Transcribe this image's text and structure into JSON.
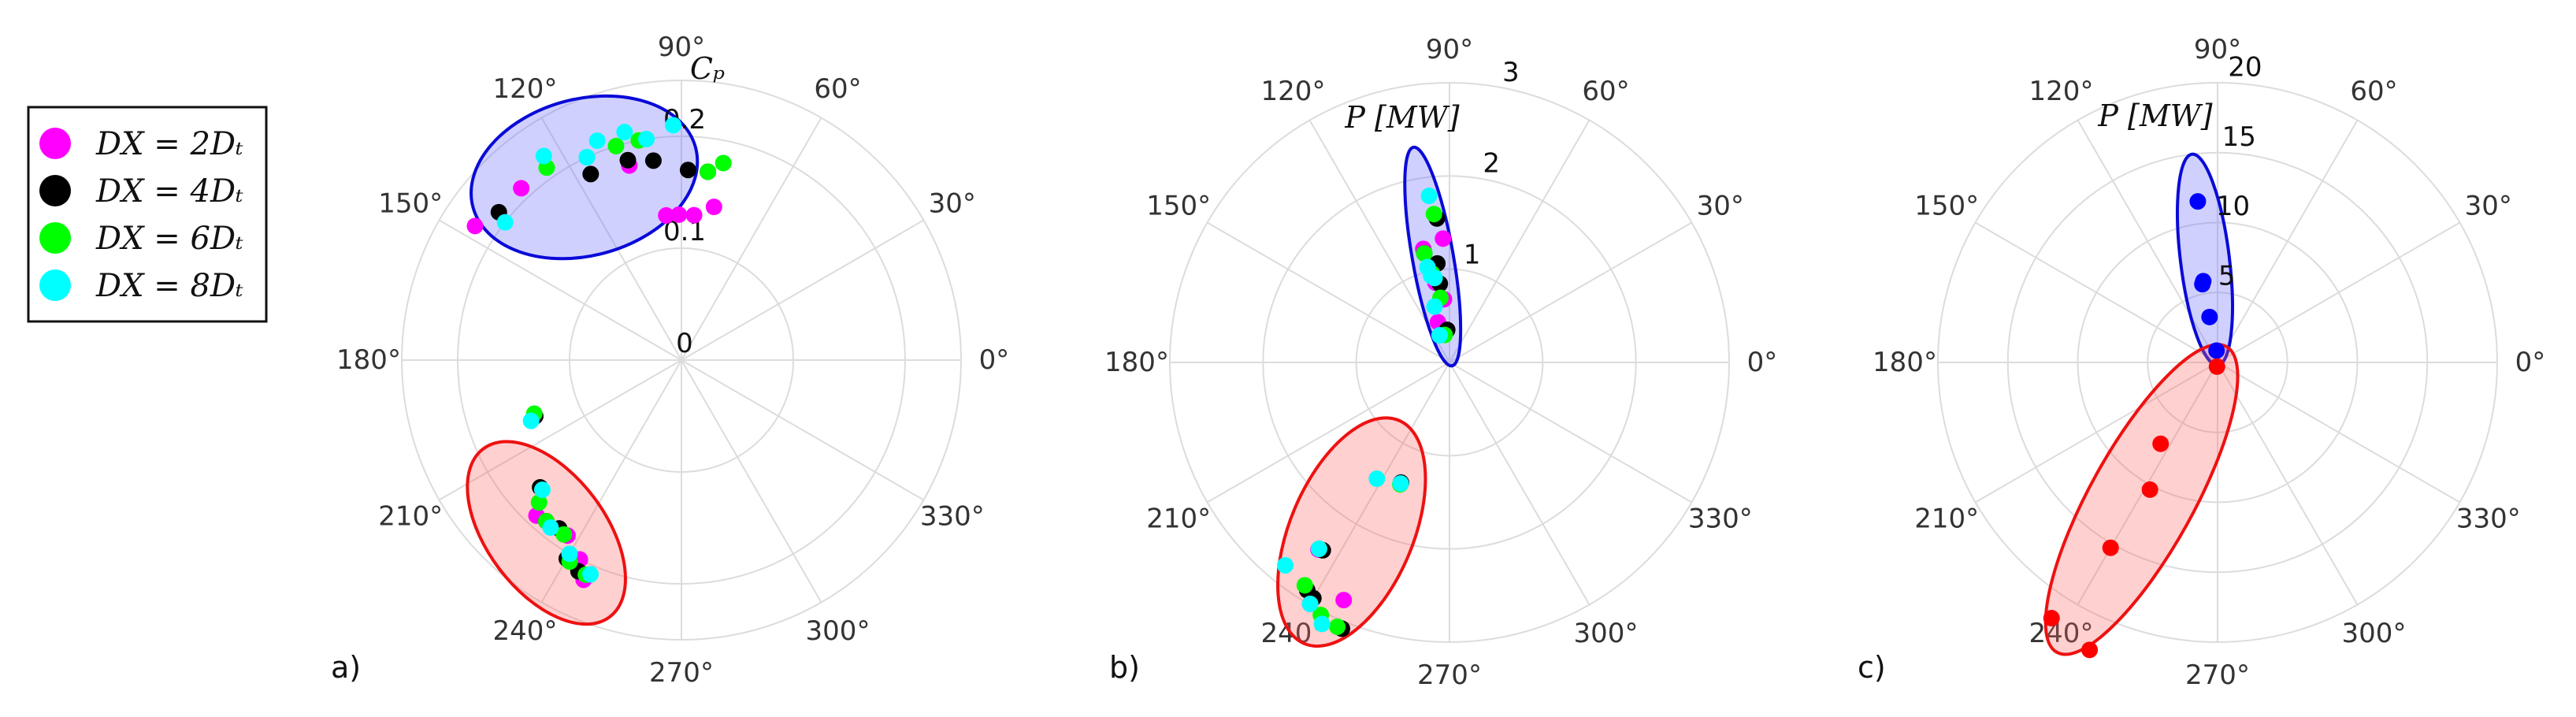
{
  "legend": [
    {
      "label": "DX = 2Dₜ",
      "color": "#ff00ff"
    },
    {
      "label": "DX = 4Dₜ",
      "color": "#000000"
    },
    {
      "label": "DX = 6Dₜ",
      "color": "#00ff00"
    },
    {
      "label": "DX = 8Dₜ",
      "color": "#00ffff"
    }
  ],
  "angle_ticks": [
    "0°",
    "30°",
    "60°",
    "90°",
    "120°",
    "150°",
    "180°",
    "210°",
    "240°",
    "270°",
    "300°",
    "330°"
  ],
  "chart_data": [
    {
      "type": "scatter",
      "subtype": "polar",
      "panel_label": "a)",
      "rlabel": "Cₚ",
      "rlim": [
        0,
        0.25
      ],
      "rticks": [
        0,
        0.1,
        0.2
      ],
      "rtick_labels": [
        "0",
        "0.1",
        "0.2"
      ],
      "rtick_angle": 90,
      "clusters": [
        {
          "name": "upper",
          "fill": "rgba(110,110,255,0.32)",
          "edge": "#0a0ad8",
          "center": [
            118,
            0.185
          ],
          "semi_axes": [
            0.103,
            0.07
          ],
          "rotation": 195
        },
        {
          "name": "lower",
          "fill": "rgba(255,100,100,0.30)",
          "edge": "#ee1111",
          "center": [
            232,
            0.196
          ],
          "semi_axes": [
            0.094,
            0.053
          ],
          "rotation": 127
        }
      ],
      "series": [
        {
          "name": "DX = 2Dₜ",
          "color": "#ff00ff",
          "points": [
            [
              133,
              0.21
            ],
            [
              147,
              0.22
            ],
            [
              105,
              0.18
            ],
            [
              96,
              0.13
            ],
            [
              91,
              0.13
            ],
            [
              85,
              0.13
            ],
            [
              78,
              0.14
            ],
            [
              201,
              0.14
            ],
            [
              227,
              0.19
            ],
            [
              243,
              0.2
            ],
            [
              246,
              0.215
            ],
            [
              237,
              0.187
            ]
          ]
        },
        {
          "name": "DX = 4Dₜ",
          "color": "#000000",
          "points": [
            [
              141,
              0.21
            ],
            [
              116,
              0.185
            ],
            [
              105,
              0.185
            ],
            [
              98,
              0.18
            ],
            [
              88,
              0.17
            ],
            [
              82,
              0.17
            ],
            [
              201,
              0.14
            ],
            [
              222,
              0.17
            ],
            [
              230,
              0.188
            ],
            [
              240,
              0.205
            ],
            [
              244,
              0.21
            ],
            [
              234,
              0.186
            ]
          ]
        },
        {
          "name": "DX = 6Dₜ",
          "color": "#00ff00",
          "points": [
            [
              125,
              0.21
            ],
            [
              115,
              0.2
            ],
            [
              107,
              0.2
            ],
            [
              101,
              0.2
            ],
            [
              82,
              0.17
            ],
            [
              78,
              0.18
            ],
            [
              200,
              0.14
            ],
            [
              225,
              0.18
            ],
            [
              230,
              0.188
            ],
            [
              241,
              0.206
            ],
            [
              246,
              0.21
            ],
            [
              236,
              0.188
            ]
          ]
        },
        {
          "name": "DX = 8Dₜ",
          "color": "#00ffff",
          "points": [
            [
              124,
              0.22
            ],
            [
              115,
              0.2
            ],
            [
              111,
              0.21
            ],
            [
              104,
              0.21
            ],
            [
              99,
              0.2
            ],
            [
              92,
              0.21
            ],
            [
              142,
              0.2
            ],
            [
              202,
              0.145
            ],
            [
              223,
              0.17
            ],
            [
              232,
              0.19
            ],
            [
              240,
              0.2
            ],
            [
              247,
              0.208
            ]
          ]
        }
      ]
    },
    {
      "type": "scatter",
      "subtype": "polar",
      "panel_label": "b)",
      "rlabel": "P [MW]",
      "rlim": [
        0,
        3
      ],
      "rticks": [
        1,
        2,
        3
      ],
      "rtick_labels": [
        "1",
        "2",
        "3"
      ],
      "rtick_angle": 78,
      "clusters": [
        {
          "name": "upper",
          "fill": "rgba(110,110,255,0.32)",
          "edge": "#0a0ad8",
          "center": [
            99,
            1.15
          ],
          "semi_axes": [
            1.19,
            0.22
          ],
          "rotation": 100
        },
        {
          "name": "lower",
          "fill": "rgba(255,100,100,0.30)",
          "edge": "#ee1111",
          "center": [
            240,
            2.1
          ],
          "semi_axes": [
            1.3,
            0.66
          ],
          "rotation": 247
        }
      ],
      "series": [
        {
          "name": "DX = 2Dₜ",
          "color": "#ff00ff",
          "points": [
            [
              93,
              1.33
            ],
            [
              95,
              0.68
            ],
            [
              103,
              1.25
            ],
            [
              100,
              0.87
            ],
            [
              106,
              0.45
            ],
            [
              238,
              2.88
            ],
            [
              240,
              2.99
            ],
            [
              246,
              2.79
            ],
            [
              235,
              2.45
            ],
            [
              248,
              1.4
            ]
          ]
        },
        {
          "name": "DX = 4Dₜ",
          "color": "#000000",
          "points": [
            [
              95,
              1.55
            ],
            [
              97,
              1.07
            ],
            [
              103,
              1.2
            ],
            [
              97,
              0.85
            ],
            [
              94,
              0.35
            ],
            [
              238,
              2.88
            ],
            [
              240,
              2.92
            ],
            [
              248,
              3.08
            ],
            [
              236,
              2.43
            ],
            [
              248,
              1.39
            ]
          ]
        },
        {
          "name": "DX = 6Dₜ",
          "color": "#00ff00",
          "points": [
            [
              96,
              1.6
            ],
            [
              103,
              1.2
            ],
            [
              101,
              0.97
            ],
            [
              98,
              0.7
            ],
            [
              100,
              0.3
            ],
            [
              237,
              2.85
            ],
            [
              243,
              3.04
            ],
            [
              247,
              3.08
            ],
            [
              235,
              2.44
            ],
            [
              248,
              1.41
            ]
          ]
        },
        {
          "name": "DX = 8Dₜ",
          "color": "#00ffff",
          "points": [
            [
              97,
              1.8
            ],
            [
              103,
              1.05
            ],
            [
              102,
              0.95
            ],
            [
              100,
              0.92
            ],
            [
              105,
              0.62
            ],
            [
              110,
              0.31
            ],
            [
              231,
              2.8
            ],
            [
              240,
              2.99
            ],
            [
              244,
              3.12
            ],
            [
              235,
              2.44
            ],
            [
              238,
              1.47
            ],
            [
              248,
              1.4
            ]
          ]
        }
      ]
    },
    {
      "type": "scatter",
      "subtype": "polar",
      "panel_label": "c)",
      "rlabel": "P [MW]",
      "rlim": [
        0,
        20
      ],
      "rticks": [
        5,
        10,
        15,
        20
      ],
      "rtick_labels": [
        "5",
        "10",
        "15",
        "20"
      ],
      "rtick_angle": 85,
      "clusters": [
        {
          "name": "upper",
          "fill": "rgba(110,110,255,0.32)",
          "edge": "#0a0ad8",
          "center": [
            97,
            7.4
          ],
          "semi_axes": [
            7.6,
            1.75
          ],
          "rotation": 97
        },
        {
          "name": "lower",
          "fill": "rgba(255,100,100,0.30)",
          "edge": "#ee1111",
          "center": [
            241,
            11.2
          ],
          "semi_axes": [
            12.5,
            3.7
          ],
          "rotation": 241
        }
      ],
      "series": [
        {
          "name": "blue cluster",
          "color": "#0000ff",
          "points": [
            [
              97,
              11.6
            ],
            [
              100,
              5.9
            ],
            [
              101,
              5.7
            ],
            [
              100,
              3.3
            ],
            [
              95,
              0.85
            ]
          ]
        },
        {
          "name": "red cluster",
          "color": "#ff0000",
          "points": [
            [
              262,
              0.3
            ],
            [
              235,
              7.1
            ],
            [
              242,
              10.3
            ],
            [
              240,
              15.3
            ],
            [
              237,
              21.8
            ],
            [
              246,
              22.5
            ]
          ]
        }
      ]
    }
  ]
}
